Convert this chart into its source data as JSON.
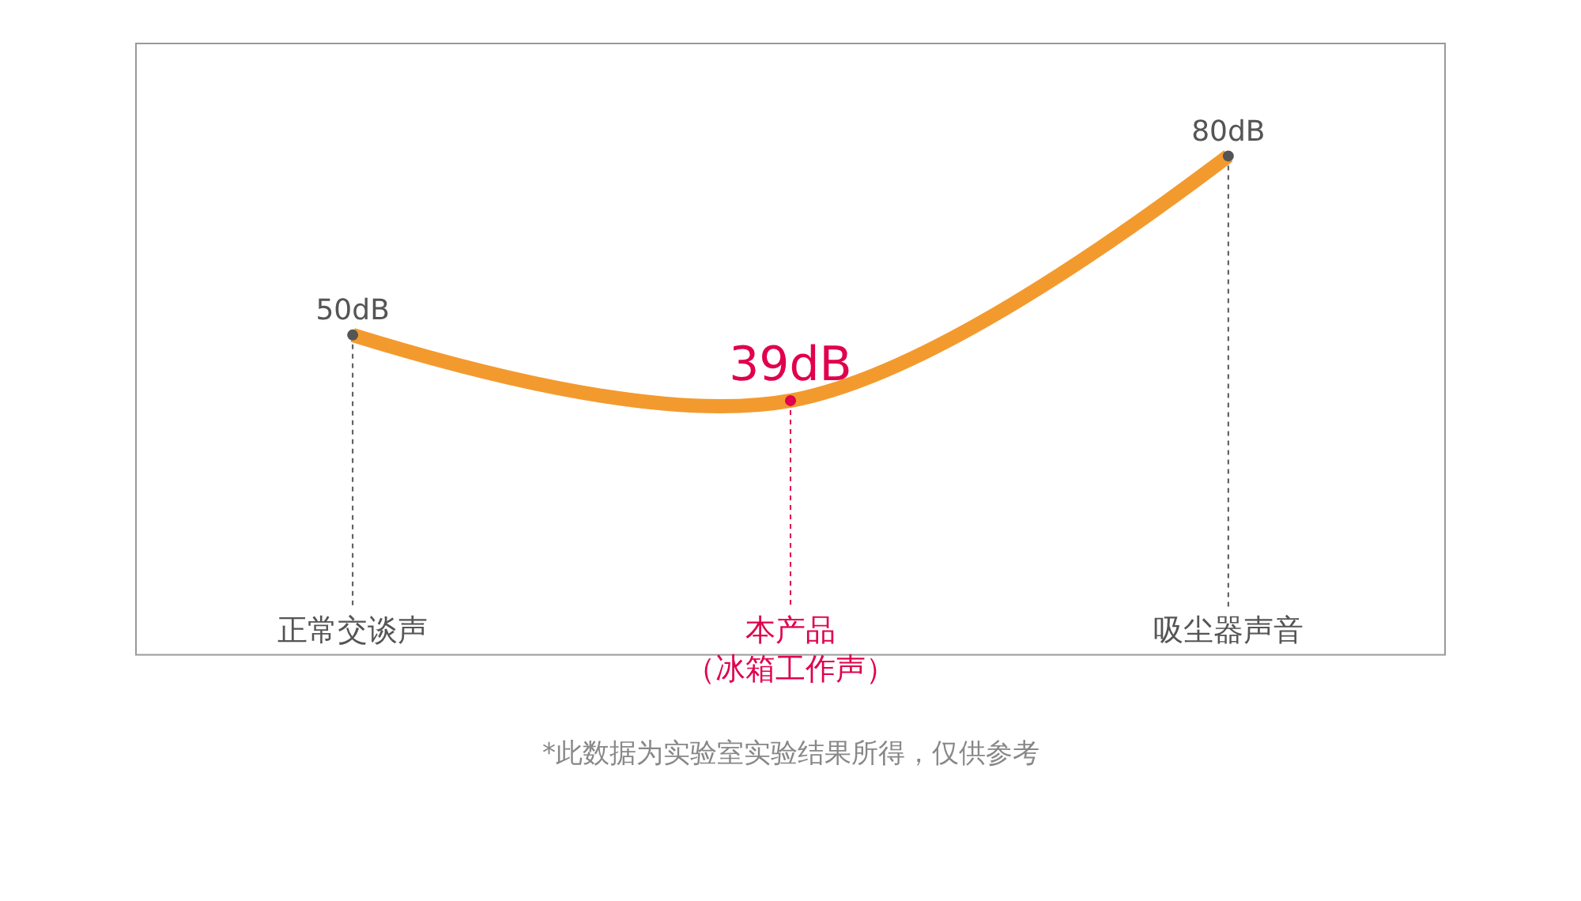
{
  "chart_data": {
    "type": "line",
    "categories": [
      "正常交谈声",
      "本产品（冰箱工作声）",
      "吸尘器声音"
    ],
    "series": [
      {
        "color": "#f39a2e",
        "values": [
          50,
          39,
          80
        ],
        "colors": [
          "#555555",
          "#e0004d",
          "#555555"
        ],
        "value_labels": [
          "50dB",
          "39dB",
          "80dB"
        ]
      }
    ],
    "marker": "circle",
    "line_style": "solid",
    "annotations": [
      "*此数据为实验室实验结果所得，仅供参考"
    ]
  }
}
